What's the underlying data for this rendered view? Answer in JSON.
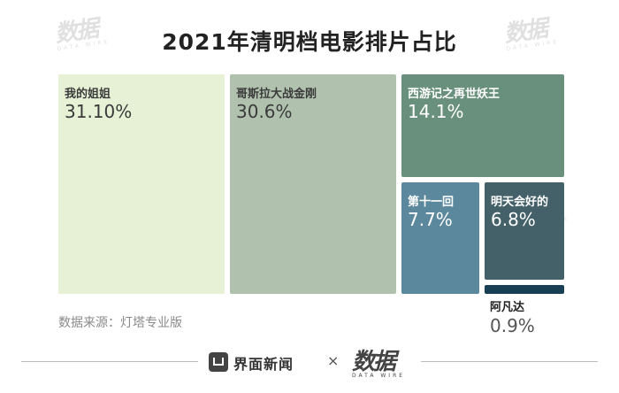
{
  "title": "2021年清明档电影排片占比",
  "source": "数据来源：灯塔专业版",
  "footer": {
    "brand": "界面新闻",
    "separator": "×",
    "partner": "数据",
    "partner_sub": "DATA WIRE"
  },
  "watermark": {
    "text": "数据",
    "sub": "DATA WIRE"
  },
  "colors": {
    "tile_1": "#e6f1d6",
    "tile_2": "#b0c2ae",
    "tile_3": "#68907c",
    "tile_4": "#5c889d",
    "tile_5": "#44616a",
    "tile_6": "#193f54",
    "light_text": "#3b3b3b",
    "dark_text": "#ffffff"
  },
  "chart_data": {
    "type": "treemap",
    "title": "2021年清明档电影排片占比",
    "unit": "%",
    "items": [
      {
        "name": "我的姐姐",
        "label": "31.10%",
        "value": 31.1
      },
      {
        "name": "哥斯拉大战金刚",
        "label": "30.6%",
        "value": 30.6
      },
      {
        "name": "西游记之再世妖王",
        "label": "14.1%",
        "value": 14.1
      },
      {
        "name": "第十一回",
        "label": "7.7%",
        "value": 7.7
      },
      {
        "name": "明天会好的",
        "label": "6.8%",
        "value": 6.8
      },
      {
        "name": "阿凡达",
        "label": "0.9%",
        "value": 0.9
      }
    ]
  }
}
